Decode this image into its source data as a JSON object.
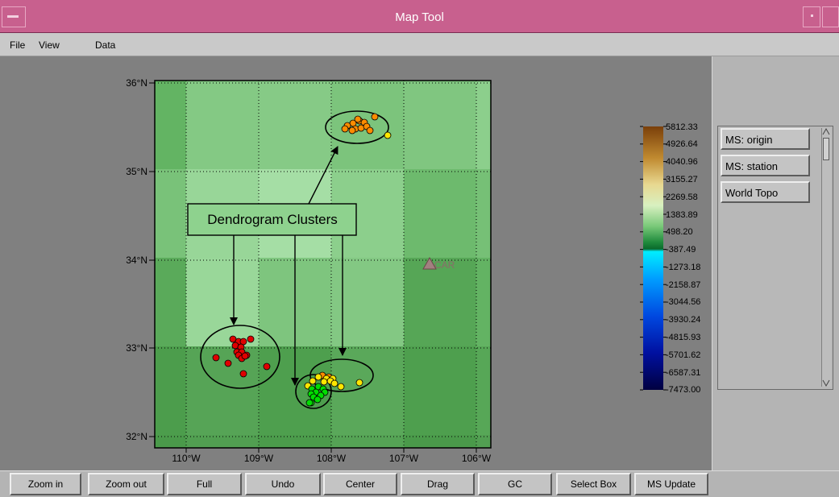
{
  "window": {
    "title": "Map Tool"
  },
  "menu": {
    "file": "File",
    "view": "View",
    "data": "Data"
  },
  "map": {
    "lat_labels": [
      "36°N",
      "35°N",
      "34°N",
      "33°N",
      "32°N"
    ],
    "lon_labels": [
      "110°W",
      "109°W",
      "108°W",
      "107°W",
      "106°W"
    ],
    "annotation": "Dendrogram Clusters",
    "station_label": "CAR",
    "colors": {
      "red_cluster": "#e00000",
      "orange_cluster": "#ff8c00",
      "yellow_cluster": "#ffe600",
      "green_cluster": "#00dd00"
    }
  },
  "colorbar": {
    "labels": [
      "5812.33",
      "4926.64",
      "4040.96",
      "3155.27",
      "2269.58",
      "1383.89",
      "498.20",
      "-387.49",
      "-1273.18",
      "-2158.87",
      "-3044.56",
      "-3930.24",
      "-4815.93",
      "-5701.62",
      "-6587.31",
      "-7473.00"
    ]
  },
  "layers": [
    "MS: origin",
    "MS: station",
    "World Topo"
  ],
  "toolbar": [
    "Zoom in",
    "Zoom out",
    "Full",
    "Undo",
    "Center",
    "Drag",
    "GC",
    "Select Box",
    "MS Update"
  ]
}
